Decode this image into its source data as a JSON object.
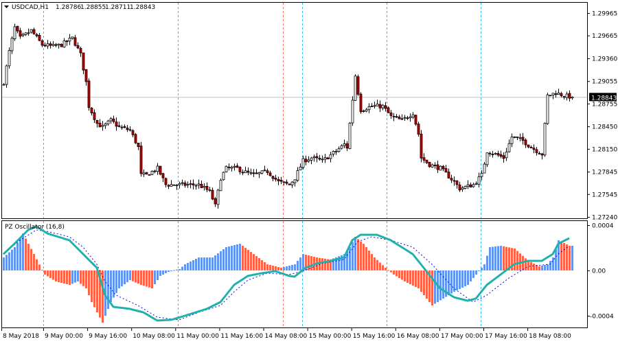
{
  "header": {
    "symbol": "USDCAD,H1",
    "open": "1.28786",
    "high": "1.28855",
    "low": "1.28711",
    "close": "1.28843"
  },
  "indicator": {
    "label": "PZ Oscillator (16,8)"
  },
  "current_price_label": "1.28843",
  "colors": {
    "bull_body": "#ffffff",
    "bear_body": "#cc0000",
    "hist_up": "#6495ed",
    "hist_down": "#ff6347",
    "main_line": "#20b2aa",
    "signal_line": "#0000ff",
    "separator_red": "#e9735b",
    "separator_blue": "#33b5e5",
    "price_line": "#c0c0c0"
  },
  "chart_data": [
    {
      "type": "candlestick",
      "title": "USDCAD,H1",
      "price_ticks": [
        "1.29965",
        "1.29665",
        "1.29360",
        "1.29055",
        "1.28755",
        "1.28450",
        "1.28150",
        "1.27845",
        "1.27545",
        "1.27240"
      ],
      "ylim": [
        1.2724,
        1.29965
      ],
      "time_labels": [
        "8 May 2018",
        "9 May 00:00",
        "9 May 16:00",
        "10 May 08:00",
        "11 May 00:00",
        "11 May 16:00",
        "14 May 08:00",
        "15 May 00:00",
        "15 May 16:00",
        "16 May 08:00",
        "17 May 00:00",
        "17 May 16:00",
        "18 May 08:00"
      ],
      "bar_count": 208,
      "close_anchors": [
        [
          0,
          1.2904
        ],
        [
          2,
          1.2945
        ],
        [
          4,
          1.2977
        ],
        [
          6,
          1.2963
        ],
        [
          10,
          1.2973
        ],
        [
          14,
          1.2954
        ],
        [
          18,
          1.2952
        ],
        [
          21,
          1.2954
        ],
        [
          25,
          1.2963
        ],
        [
          28,
          1.2941
        ],
        [
          30,
          1.2904
        ],
        [
          31,
          1.2872
        ],
        [
          34,
          1.2849
        ],
        [
          36,
          1.2844
        ],
        [
          39,
          1.2853
        ],
        [
          42,
          1.2844
        ],
        [
          46,
          1.284
        ],
        [
          49,
          1.2817
        ],
        [
          50,
          1.278
        ],
        [
          52,
          1.278
        ],
        [
          56,
          1.2789
        ],
        [
          59,
          1.2767
        ],
        [
          62,
          1.2767
        ],
        [
          66,
          1.2767
        ],
        [
          71,
          1.2767
        ],
        [
          75,
          1.2758
        ],
        [
          77,
          1.2739
        ],
        [
          79,
          1.2776
        ],
        [
          81,
          1.2789
        ],
        [
          85,
          1.2789
        ],
        [
          87,
          1.2785
        ],
        [
          91,
          1.278
        ],
        [
          96,
          1.2785
        ],
        [
          100,
          1.2771
        ],
        [
          104,
          1.2767
        ],
        [
          106,
          1.2776
        ],
        [
          109,
          1.2799
        ],
        [
          112,
          1.2803
        ],
        [
          116,
          1.2799
        ],
        [
          121,
          1.2812
        ],
        [
          124,
          1.2821
        ],
        [
          125,
          1.2817
        ],
        [
          126,
          1.2849
        ],
        [
          128,
          1.2913
        ],
        [
          129,
          1.289
        ],
        [
          130,
          1.2867
        ],
        [
          134,
          1.2872
        ],
        [
          138,
          1.2872
        ],
        [
          141,
          1.2858
        ],
        [
          145,
          1.2853
        ],
        [
          149,
          1.2863
        ],
        [
          151,
          1.2835
        ],
        [
          152,
          1.2803
        ],
        [
          155,
          1.2794
        ],
        [
          159,
          1.2789
        ],
        [
          164,
          1.2771
        ],
        [
          166,
          1.2762
        ],
        [
          171,
          1.2767
        ],
        [
          174,
          1.278
        ],
        [
          176,
          1.2812
        ],
        [
          179,
          1.2808
        ],
        [
          182,
          1.2803
        ],
        [
          185,
          1.2831
        ],
        [
          189,
          1.2826
        ],
        [
          192,
          1.2817
        ],
        [
          196,
          1.2808
        ],
        [
          198,
          1.2886
        ],
        [
          201,
          1.289
        ],
        [
          204,
          1.2886
        ],
        [
          207,
          1.28843
        ]
      ]
    },
    {
      "type": "oscillator",
      "title": "PZ Oscillator (16,8)",
      "ticks": [
        "0.0004",
        "0.00",
        "-0.0004"
      ],
      "ylim": [
        -0.00046,
        0.00041
      ],
      "unit": 0.0001,
      "main_anchors": [
        [
          0,
          1.45
        ],
        [
          4,
          2.36
        ],
        [
          9,
          3.58
        ],
        [
          12,
          3.88
        ],
        [
          16,
          3.27
        ],
        [
          24,
          2.67
        ],
        [
          29,
          1.45
        ],
        [
          34,
          0.24
        ],
        [
          37,
          -2.18
        ],
        [
          40,
          -3.21
        ],
        [
          46,
          -3.39
        ],
        [
          51,
          -3.7
        ],
        [
          56,
          -4.42
        ],
        [
          61,
          -4.36
        ],
        [
          66,
          -4.0
        ],
        [
          74,
          -3.39
        ],
        [
          79,
          -2.79
        ],
        [
          84,
          -1.27
        ],
        [
          89,
          -0.48
        ],
        [
          94,
          -0.24
        ],
        [
          99,
          -0.06
        ],
        [
          104,
          -0.48
        ],
        [
          106,
          -0.55
        ],
        [
          110,
          0.24
        ],
        [
          114,
          0.61
        ],
        [
          119,
          0.85
        ],
        [
          124,
          1.15
        ],
        [
          127,
          2.67
        ],
        [
          130,
          3.15
        ],
        [
          136,
          3.15
        ],
        [
          141,
          2.67
        ],
        [
          149,
          1.45
        ],
        [
          154,
          -0.06
        ],
        [
          159,
          -1.58
        ],
        [
          164,
          -2.36
        ],
        [
          169,
          -2.67
        ],
        [
          172,
          -2.48
        ],
        [
          176,
          -1.27
        ],
        [
          181,
          -0.36
        ],
        [
          186,
          0.55
        ],
        [
          191,
          0.85
        ],
        [
          196,
          0.85
        ],
        [
          200,
          1.45
        ],
        [
          202,
          2.36
        ],
        [
          206,
          2.85
        ]
      ],
      "signal_anchors": [
        [
          0,
          1.45
        ],
        [
          6,
          2.67
        ],
        [
          12,
          3.58
        ],
        [
          16,
          3.45
        ],
        [
          24,
          2.97
        ],
        [
          29,
          2.06
        ],
        [
          34,
          0.55
        ],
        [
          37,
          -0.97
        ],
        [
          41,
          -2.18
        ],
        [
          49,
          -3.09
        ],
        [
          56,
          -4.12
        ],
        [
          64,
          -4.36
        ],
        [
          71,
          -3.7
        ],
        [
          79,
          -3.09
        ],
        [
          84,
          -1.88
        ],
        [
          89,
          -0.85
        ],
        [
          96,
          -0.24
        ],
        [
          104,
          -0.36
        ],
        [
          109,
          -0.06
        ],
        [
          116,
          0.61
        ],
        [
          124,
          0.97
        ],
        [
          129,
          2.55
        ],
        [
          134,
          2.97
        ],
        [
          141,
          2.67
        ],
        [
          149,
          2.06
        ],
        [
          156,
          0.55
        ],
        [
          164,
          -1.58
        ],
        [
          171,
          -2.79
        ],
        [
          176,
          -2.18
        ],
        [
          184,
          -0.67
        ],
        [
          191,
          0.36
        ],
        [
          199,
          0.55
        ],
        [
          202,
          1.45
        ],
        [
          206,
          2.18
        ]
      ],
      "histogram_anchors": [
        [
          0,
          1.15
        ],
        [
          4,
          2.06
        ],
        [
          7,
          3.27
        ],
        [
          11,
          1.45
        ],
        [
          14,
          0.06
        ],
        [
          15,
          -0.36
        ],
        [
          19,
          -0.97
        ],
        [
          24,
          -1.27
        ],
        [
          27,
          -0.97
        ],
        [
          30,
          -1.58
        ],
        [
          32,
          -2.79
        ],
        [
          36,
          -4.61
        ],
        [
          39,
          -2.79
        ],
        [
          42,
          -1.58
        ],
        [
          46,
          -0.85
        ],
        [
          50,
          -1.27
        ],
        [
          54,
          -1.58
        ],
        [
          57,
          -0.48
        ],
        [
          61,
          0
        ],
        [
          64,
          0.12
        ],
        [
          66,
          0.55
        ],
        [
          71,
          1.15
        ],
        [
          76,
          1.15
        ],
        [
          81,
          2.06
        ],
        [
          86,
          2.36
        ],
        [
          91,
          1.45
        ],
        [
          96,
          0.55
        ],
        [
          101,
          0.24
        ],
        [
          106,
          0.55
        ],
        [
          109,
          1.45
        ],
        [
          114,
          1.15
        ],
        [
          119,
          0.97
        ],
        [
          124,
          1.45
        ],
        [
          126,
          2.06
        ],
        [
          128,
          2.97
        ],
        [
          131,
          2.36
        ],
        [
          135,
          1.15
        ],
        [
          139,
          0.24
        ],
        [
          142,
          -0.36
        ],
        [
          146,
          -0.97
        ],
        [
          151,
          -1.58
        ],
        [
          156,
          -3.09
        ],
        [
          160,
          -2.48
        ],
        [
          164,
          -1.88
        ],
        [
          169,
          -1.27
        ],
        [
          172,
          -0.36
        ],
        [
          175,
          0.55
        ],
        [
          177,
          2.06
        ],
        [
          181,
          2.18
        ],
        [
          186,
          1.94
        ],
        [
          191,
          0.85
        ],
        [
          195,
          0.36
        ],
        [
          198,
          0.55
        ],
        [
          200,
          1.15
        ],
        [
          202,
          2.67
        ],
        [
          206,
          2.18
        ]
      ]
    }
  ]
}
